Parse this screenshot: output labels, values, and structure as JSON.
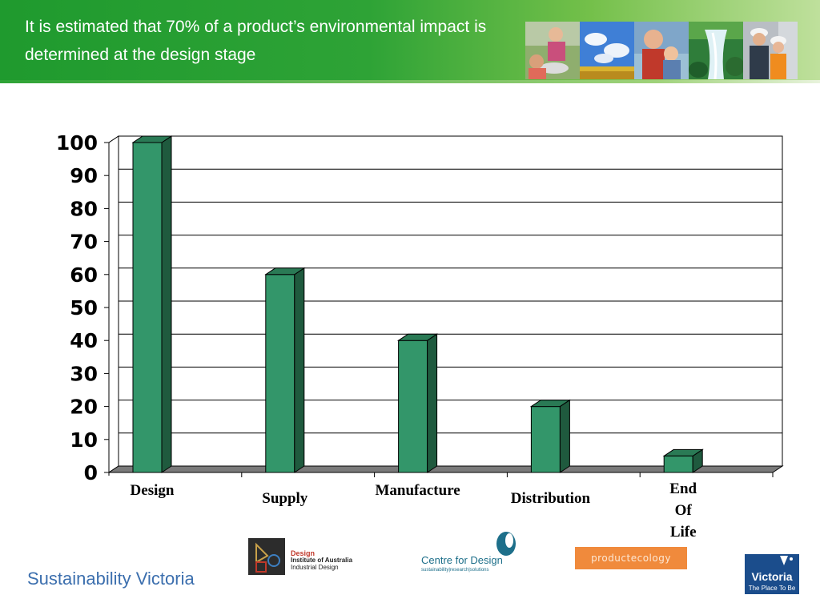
{
  "slide": {
    "title": "It is estimated that 70% of a product’s environmental impact is determined at the design stage",
    "footer_brand": "Sustainability Victoria"
  },
  "colors": {
    "banner_green": "#2ea336",
    "bar_face": "#33966a",
    "bar_side": "#1f5a3e",
    "bar_top": "#2a7a55",
    "floor": "#7a7a7a",
    "brand_blue": "#3c6fae"
  },
  "photo_strip": [
    {
      "name": "woman-with-cookware-photo"
    },
    {
      "name": "sky-and-field-photo"
    },
    {
      "name": "grandfather-and-child-photo"
    },
    {
      "name": "waterfall-photo"
    },
    {
      "name": "construction-workers-photo"
    }
  ],
  "logos": {
    "dia": {
      "line1": "Design",
      "line2": "Institute of Australia",
      "line3": "Industrial Design"
    },
    "cfd": {
      "line1": "Centre for Design",
      "line2": "sustainability|research|solutions"
    },
    "productecology": {
      "text": "productecology"
    },
    "victoria": {
      "name": "Victoria",
      "tagline": "The Place To Be"
    }
  },
  "chart_data": {
    "type": "bar",
    "categories": [
      "Design",
      "Supply",
      "Manufacture",
      "Distribution",
      "End Of Life"
    ],
    "category_display": [
      [
        "Design"
      ],
      [
        "Supply"
      ],
      [
        "Manufacture"
      ],
      [
        "Distribution"
      ],
      [
        "End",
        "Of",
        "Life"
      ]
    ],
    "values": [
      100,
      60,
      40,
      20,
      5
    ],
    "ylim": [
      0,
      100
    ],
    "yticks": [
      0,
      10,
      20,
      30,
      40,
      50,
      60,
      70,
      80,
      90,
      100
    ],
    "grid": true,
    "style": "3d-column"
  }
}
